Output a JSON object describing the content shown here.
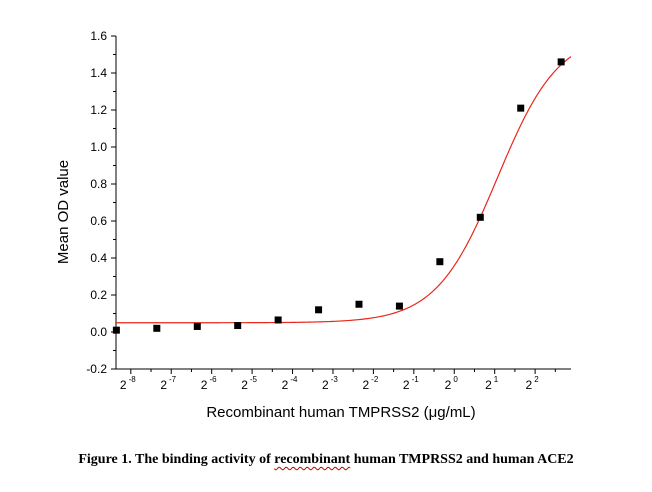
{
  "caption": {
    "prefix": "Figure 1. The binding activity of ",
    "flagged_word": "recombinant",
    "suffix": " human TMPRSS2 and human ACE2"
  },
  "chart_data": {
    "type": "scatter",
    "title": "",
    "xlabel": "Recombinant human TMPRSS2 (μg/mL)",
    "ylabel": "Mean OD value",
    "x_scale": "log2",
    "xlim": [
      0.00303,
      7.4
    ],
    "ylim": [
      -0.2,
      1.6
    ],
    "x_ticks": [
      {
        "base": "2",
        "exp": "-8",
        "value": 0.00390625
      },
      {
        "base": "2",
        "exp": "-7",
        "value": 0.0078125
      },
      {
        "base": "2",
        "exp": "-6",
        "value": 0.015625
      },
      {
        "base": "2",
        "exp": "-5",
        "value": 0.03125
      },
      {
        "base": "2",
        "exp": "-4",
        "value": 0.0625
      },
      {
        "base": "2",
        "exp": "-3",
        "value": 0.125
      },
      {
        "base": "2",
        "exp": "-2",
        "value": 0.25
      },
      {
        "base": "2",
        "exp": "-1",
        "value": 0.5
      },
      {
        "base": "2",
        "exp": "0",
        "value": 1
      },
      {
        "base": "2",
        "exp": "1",
        "value": 2
      },
      {
        "base": "2",
        "exp": "2",
        "value": 4
      }
    ],
    "y_ticks": [
      "-0.2",
      "0.0",
      "0.2",
      "0.4",
      "0.6",
      "0.8",
      "1.0",
      "1.2",
      "1.4",
      "1.6"
    ],
    "series": [
      {
        "kind": "points",
        "marker": "square",
        "color": "#000000",
        "x": [
          0.00305,
          0.0061,
          0.01221,
          0.02441,
          0.04883,
          0.09766,
          0.1953,
          0.3906,
          0.7813,
          1.5625,
          3.125,
          6.25
        ],
        "y": [
          0.01,
          0.02,
          0.03,
          0.035,
          0.065,
          0.12,
          0.15,
          0.14,
          0.38,
          0.62,
          1.21,
          1.46
        ]
      },
      {
        "kind": "fit",
        "color": "#e8271c",
        "model": "four-parameter logistic",
        "bottom": 0.05,
        "top": 1.62,
        "ec50": 2.1,
        "hill": 1.9
      }
    ],
    "grid": false,
    "legend": "none"
  }
}
